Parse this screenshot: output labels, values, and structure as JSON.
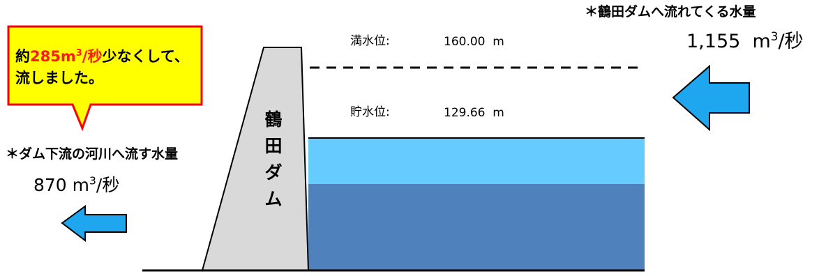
{
  "callout": {
    "prefix": "約",
    "amount": "285",
    "unit": "m",
    "unit_sup": "3",
    "per": "/秒",
    "suffix": "少なくして、",
    "line2": "流しました。",
    "fill_color": "#ffff00",
    "border_color": "#ff0000",
    "highlight_color": "#ff1a1a"
  },
  "inflow": {
    "label": "＊鶴田ダムへ流れてくる水量",
    "value": "1,155",
    "unit": "m",
    "unit_sup": "3",
    "per": "/秒",
    "arrow_icon": "arrow-left-icon"
  },
  "outflow": {
    "label": "＊ダム下流の河川へ流す水量",
    "value": "870",
    "unit": "m",
    "unit_sup": "3",
    "per": "/秒",
    "arrow_icon": "arrow-left-icon"
  },
  "full_level": {
    "label": "満水位:",
    "value": "160.00",
    "unit": "m"
  },
  "storage_level": {
    "label": "貯水位:",
    "value": "129.66",
    "unit": "m"
  },
  "dam": {
    "chars": [
      "鶴",
      "田",
      "ダ",
      "ム"
    ],
    "fill_color": "#d9d9d9"
  },
  "colors": {
    "arrow": "#1ea7ee",
    "water_surface": "#66ccff",
    "water_deep": "#4f81bd"
  }
}
